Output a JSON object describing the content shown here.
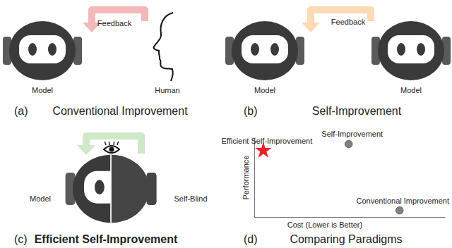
{
  "diagram": {
    "panels": [
      {
        "tag": "(a)",
        "caption": "Conventional Improvement",
        "arrow_label": "Feedback",
        "labels": [
          "Model",
          "Human"
        ]
      },
      {
        "tag": "(b)",
        "caption": "Self-Improvement",
        "arrow_label": "Feedback",
        "labels": [
          "Model",
          "Model"
        ]
      },
      {
        "tag": "(c)",
        "caption": "Efficient Self-Improvement",
        "labels": [
          "Model",
          "Self-Blind"
        ]
      },
      {
        "tag": "(d)",
        "caption": "Comparing Paradigms"
      }
    ]
  },
  "chart_data": {
    "type": "scatter",
    "x_label": "Cost (Lower is Better)",
    "y_label": "Performance",
    "xlim": [
      -0.05,
      1
    ],
    "ylim": [
      -0.1,
      1.1
    ],
    "tick_labels": false,
    "series": [
      {
        "name": "Efficient Self-Improvement",
        "color": "#e8202a",
        "marker": "star",
        "x": [
          0
        ],
        "values": [
          0.9
        ]
      },
      {
        "name": "Self-Improvement",
        "color": "#808080",
        "marker": "circle",
        "x": [
          0.47
        ],
        "values": [
          1.0
        ]
      },
      {
        "name": "Conventional Improvement",
        "color": "#808080",
        "marker": "circle",
        "x": [
          0.75
        ],
        "values": [
          0
        ]
      }
    ]
  }
}
